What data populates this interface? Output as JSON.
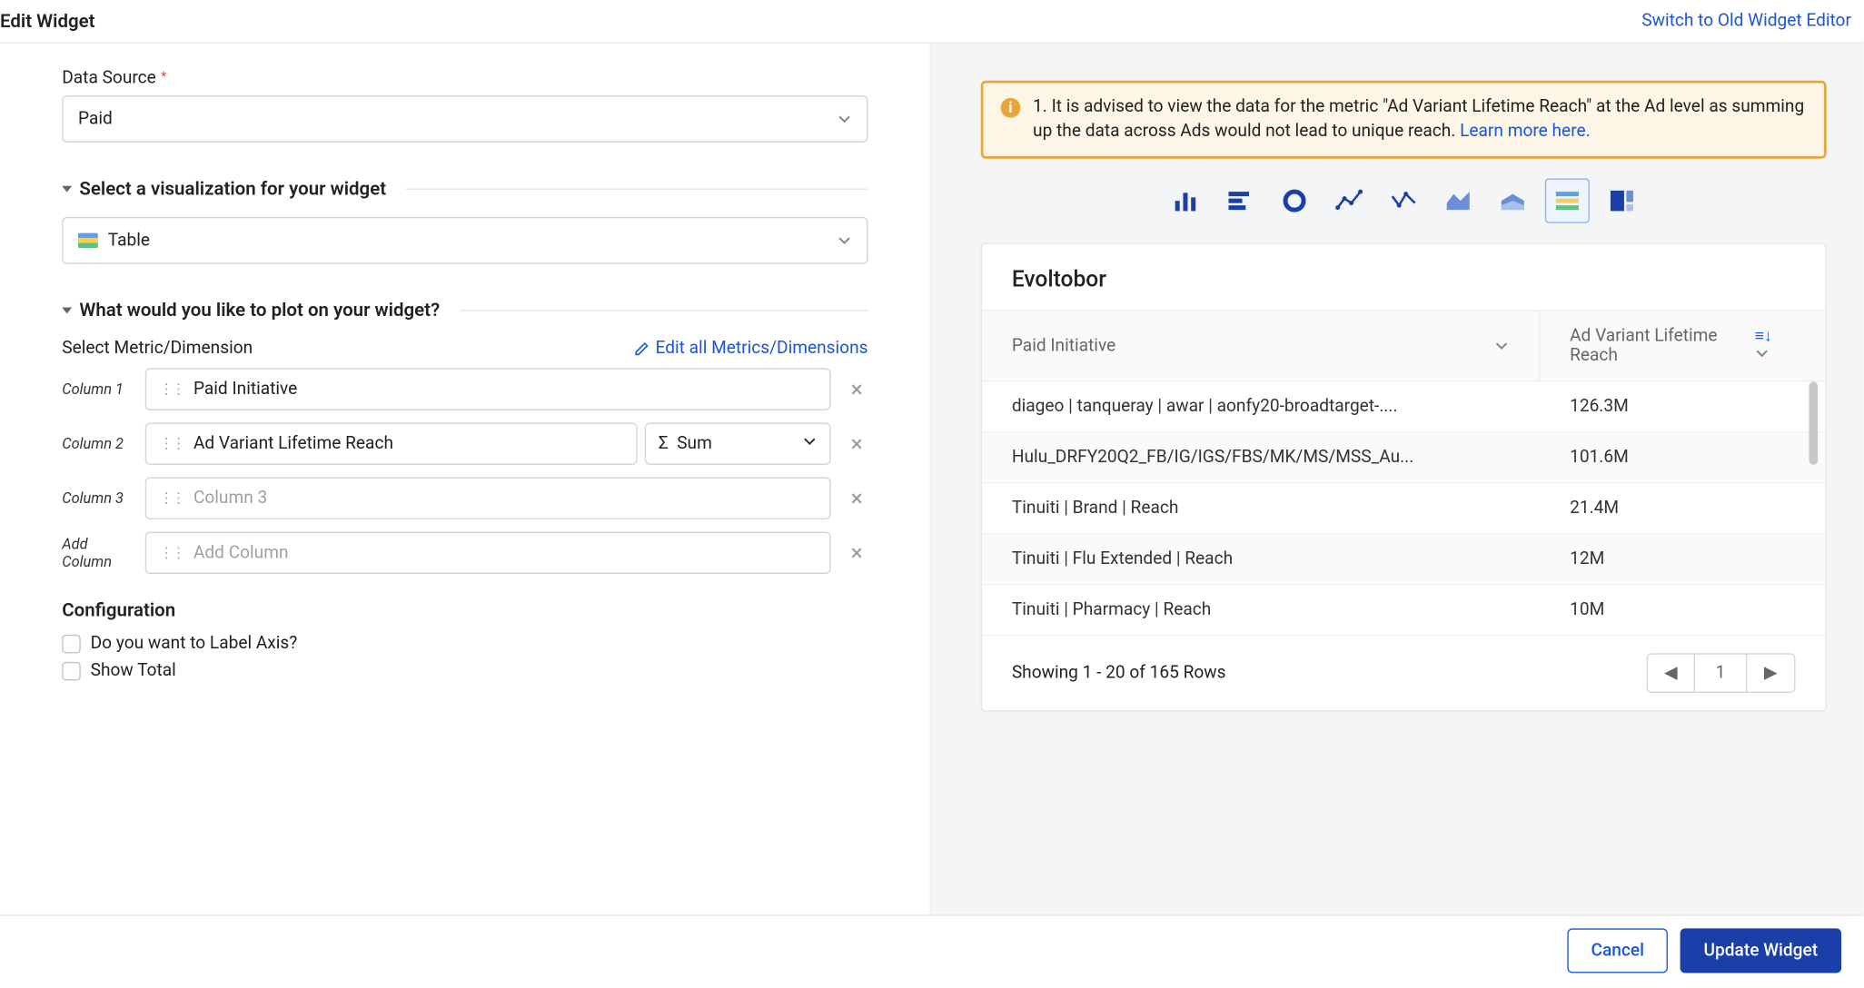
{
  "header": {
    "title": "Edit Widget",
    "switch_link": "Switch to Old Widget Editor"
  },
  "left": {
    "data_source_label": "Data Source",
    "data_source_value": "Paid",
    "viz_section": "Select a visualization for your widget",
    "viz_value": "Table",
    "plot_section": "What would you like to plot on your widget?",
    "metric_label": "Select Metric/Dimension",
    "edit_all_label": "Edit all Metrics/Dimensions",
    "columns": [
      {
        "label": "Column 1",
        "value": "Paid Initiative",
        "has_agg": false
      },
      {
        "label": "Column 2",
        "value": "Ad Variant Lifetime Reach",
        "has_agg": true,
        "agg": "Sum",
        "agg_prefix": "Σ"
      },
      {
        "label": "Column 3",
        "placeholder": "Column 3"
      },
      {
        "label": "Add Column",
        "placeholder": "Add Column"
      }
    ],
    "config_label": "Configuration",
    "cb_label_axis": "Do you want to Label Axis?",
    "cb_show_total": "Show Total"
  },
  "right": {
    "alert_text": "1. It is advised to view the data for the metric \"Ad Variant Lifetime Reach\" at the Ad level as summing up the data across Ads would not lead to unique reach. ",
    "alert_link": "Learn more here.",
    "chart_types": [
      {
        "name": "bar-chart",
        "selected": false
      },
      {
        "name": "horizontal-bar",
        "selected": false
      },
      {
        "name": "donut",
        "selected": false
      },
      {
        "name": "line",
        "selected": false
      },
      {
        "name": "scatter-line",
        "selected": false
      },
      {
        "name": "area",
        "selected": false
      },
      {
        "name": "stacked-area",
        "selected": false
      },
      {
        "name": "table",
        "selected": true
      },
      {
        "name": "treemap",
        "selected": false
      }
    ],
    "preview_title": "Evoltobor",
    "col1_header": "Paid Initiative",
    "col2_header": "Ad Variant Lifetime Reach",
    "rows": [
      {
        "c1": "diageo | tanqueray | awar | aonfy20-broadtarget-....",
        "c2": "126.3M"
      },
      {
        "c1": "Hulu_DRFY20Q2_FB/IG/IGS/FBS/MK/MS/MSS_Au...",
        "c2": "101.6M"
      },
      {
        "c1": "Tinuiti | Brand | Reach",
        "c2": "21.4M"
      },
      {
        "c1": "Tinuiti | Flu Extended | Reach",
        "c2": "12M"
      },
      {
        "c1": "Tinuiti | Pharmacy | Reach",
        "c2": "10M"
      }
    ],
    "pager_text": "Showing 1 - 20 of 165 Rows",
    "pager_current": "1"
  },
  "footer": {
    "cancel": "Cancel",
    "update": "Update Widget"
  },
  "colors": {
    "primary": "#1a3fa8",
    "link": "#1a56db",
    "alert_border": "#e6a83c",
    "alert_bg": "#fdf6e7"
  }
}
